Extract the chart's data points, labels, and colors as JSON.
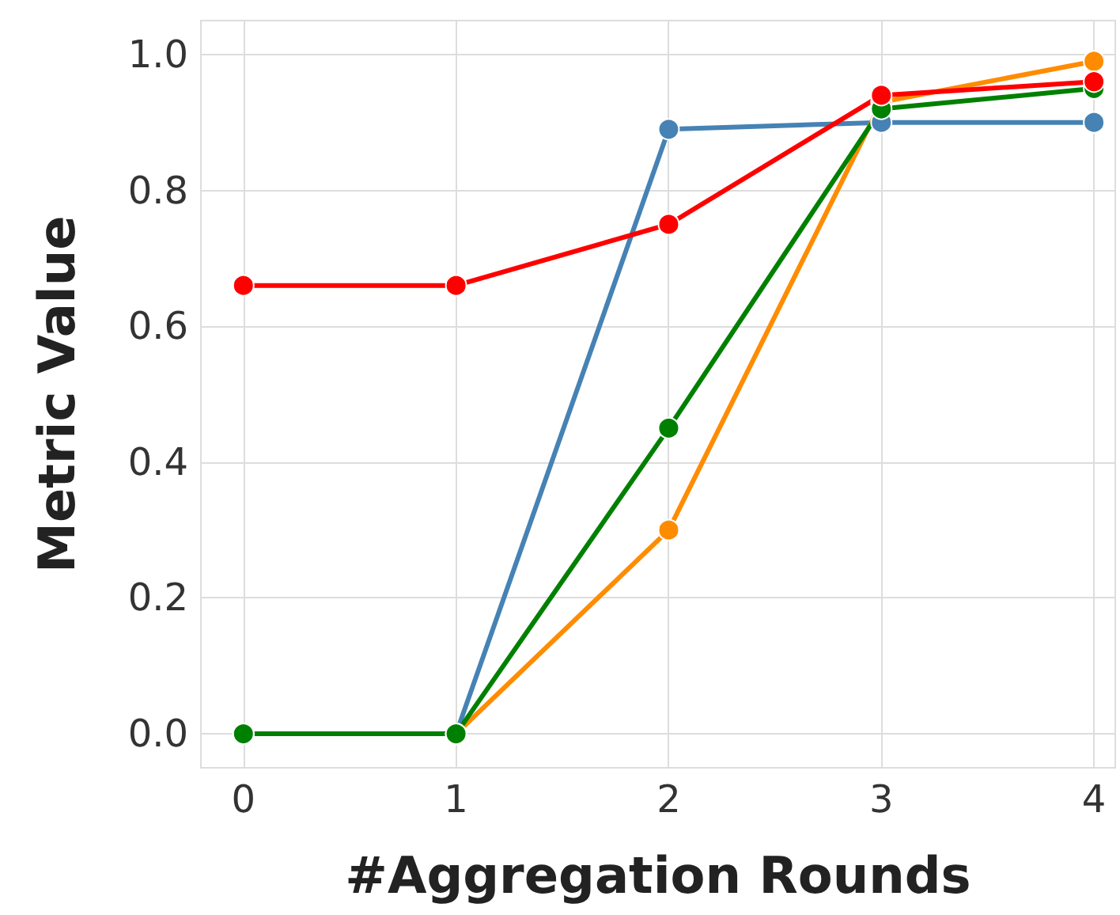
{
  "chart_data": {
    "type": "line",
    "xlabel": "#Aggregation Rounds",
    "ylabel": "Metric Value",
    "x": [
      0,
      1,
      2,
      3,
      4
    ],
    "series": [
      {
        "color": "#4682b4",
        "values": [
          0,
          0,
          0.89,
          0.9,
          0.9
        ]
      },
      {
        "color": "#ff8c00",
        "values": [
          0,
          0,
          0.3,
          0.93,
          0.99
        ]
      },
      {
        "color": "#008000",
        "values": [
          0,
          0,
          0.45,
          0.92,
          0.95
        ]
      },
      {
        "color": "#ff0000",
        "values": [
          0.66,
          0.66,
          0.75,
          0.94,
          0.96
        ]
      }
    ],
    "xlim": [
      -0.2,
      4.1
    ],
    "xticks": [
      0,
      1,
      2,
      3,
      4
    ],
    "ylim": [
      -0.05,
      1.05
    ],
    "yticks": [
      {
        "value": 0,
        "label": "0.0"
      },
      {
        "value": 0.2,
        "label": "0.2"
      },
      {
        "value": 0.4,
        "label": "0.4"
      },
      {
        "value": 0.6,
        "label": "0.6"
      },
      {
        "value": 0.8,
        "label": "0.8"
      },
      {
        "value": 1,
        "label": "1.0"
      }
    ],
    "grid": true,
    "marker": "circle",
    "line_style": "solid"
  }
}
